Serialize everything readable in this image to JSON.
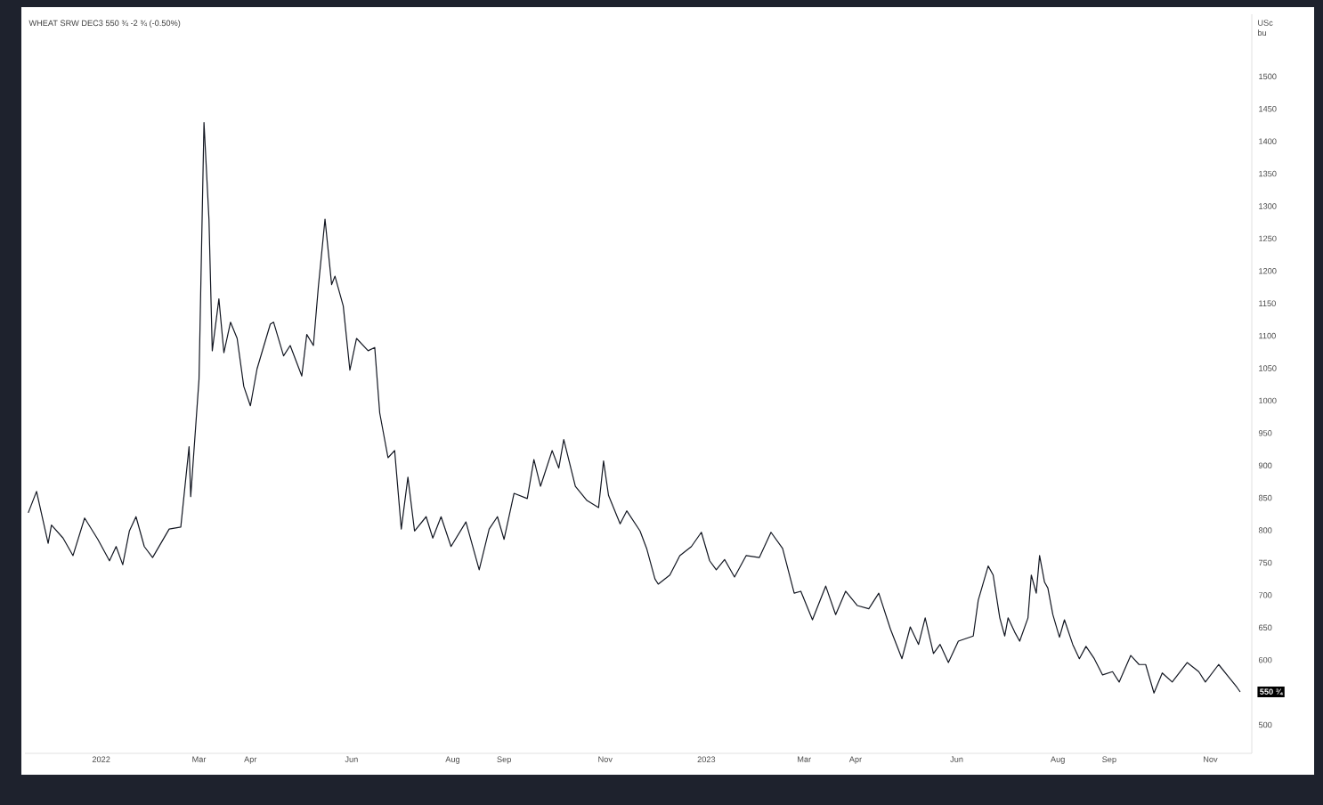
{
  "chart_data": {
    "type": "line",
    "title": "WHEAT SRW DEC3 550 ¾ -2 ¾ (-0.50%)",
    "ylabel": "USc bu",
    "xlim": [
      "2021-11-16",
      "2023-11-26"
    ],
    "xticks": [
      {
        "value": "2022-01-01",
        "label": "2022"
      },
      {
        "value": "2022-03-01",
        "label": "Mar"
      },
      {
        "value": "2022-04-01",
        "label": "Apr"
      },
      {
        "value": "2022-06-01",
        "label": "Jun"
      },
      {
        "value": "2022-08-01",
        "label": "Aug"
      },
      {
        "value": "2022-09-01",
        "label": "Sep"
      },
      {
        "value": "2022-11-01",
        "label": "Nov"
      },
      {
        "value": "2023-01-01",
        "label": "2023"
      },
      {
        "value": "2023-03-01",
        "label": "Mar"
      },
      {
        "value": "2023-04-01",
        "label": "Apr"
      },
      {
        "value": "2023-06-01",
        "label": "Jun"
      },
      {
        "value": "2023-08-01",
        "label": "Aug"
      },
      {
        "value": "2023-09-01",
        "label": "Sep"
      },
      {
        "value": "2023-11-01",
        "label": "Nov"
      }
    ],
    "ylim": [
      456,
      1596
    ],
    "yticks": [
      500,
      600,
      650,
      700,
      750,
      800,
      850,
      900,
      950,
      1000,
      1050,
      1100,
      1150,
      1200,
      1250,
      1300,
      1350,
      1400,
      1450,
      1500
    ],
    "annotations": [
      {
        "text": "550 ¾",
        "x": "2023-11-19",
        "y": 550.75
      }
    ],
    "series": [
      {
        "color": "#131722",
        "x": [
          "2021-11-18",
          "2021-11-23",
          "2021-11-30",
          "2021-12-02",
          "2021-12-09",
          "2021-12-15",
          "2021-12-22",
          "2021-12-30",
          "2022-01-06",
          "2022-01-10",
          "2022-01-14",
          "2022-01-18",
          "2022-01-22",
          "2022-01-27",
          "2022-02-01",
          "2022-02-11",
          "2022-02-18",
          "2022-02-23",
          "2022-02-24",
          "2022-03-01",
          "2022-03-04",
          "2022-03-07",
          "2022-03-09",
          "2022-03-13",
          "2022-03-16",
          "2022-03-20",
          "2022-03-24",
          "2022-03-28",
          "2022-04-01",
          "2022-04-05",
          "2022-04-13",
          "2022-04-15",
          "2022-04-21",
          "2022-04-25",
          "2022-05-02",
          "2022-05-05",
          "2022-05-09",
          "2022-05-12",
          "2022-05-16",
          "2022-05-20",
          "2022-05-22",
          "2022-05-27",
          "2022-05-31",
          "2022-06-04",
          "2022-06-11",
          "2022-06-15",
          "2022-06-18",
          "2022-06-23",
          "2022-06-27",
          "2022-07-01",
          "2022-07-05",
          "2022-07-09",
          "2022-07-16",
          "2022-07-20",
          "2022-07-25",
          "2022-07-31",
          "2022-08-09",
          "2022-08-17",
          "2022-08-23",
          "2022-08-28",
          "2022-09-01",
          "2022-09-07",
          "2022-09-15",
          "2022-09-19",
          "2022-09-23",
          "2022-09-30",
          "2022-10-04",
          "2022-10-07",
          "2022-10-14",
          "2022-10-21",
          "2022-10-28",
          "2022-10-31",
          "2022-11-03",
          "2022-11-10",
          "2022-11-14",
          "2022-11-22",
          "2022-11-26",
          "2022-12-01",
          "2022-12-03",
          "2022-12-10",
          "2022-12-16",
          "2022-12-23",
          "2022-12-29",
          "2023-01-03",
          "2023-01-07",
          "2023-01-12",
          "2023-01-18",
          "2023-01-25",
          "2023-02-02",
          "2023-02-09",
          "2023-02-16",
          "2023-02-23",
          "2023-02-27",
          "2023-03-06",
          "2023-03-14",
          "2023-03-20",
          "2023-03-26",
          "2023-04-02",
          "2023-04-09",
          "2023-04-15",
          "2023-04-22",
          "2023-04-29",
          "2023-05-04",
          "2023-05-09",
          "2023-05-13",
          "2023-05-18",
          "2023-05-22",
          "2023-05-27",
          "2023-06-02",
          "2023-06-11",
          "2023-06-14",
          "2023-06-20",
          "2023-06-23",
          "2023-06-27",
          "2023-06-30",
          "2023-07-02",
          "2023-07-06",
          "2023-07-09",
          "2023-07-14",
          "2023-07-16",
          "2023-07-19",
          "2023-07-21",
          "2023-07-24",
          "2023-07-26",
          "2023-07-29",
          "2023-08-02",
          "2023-08-05",
          "2023-08-10",
          "2023-08-14",
          "2023-08-18",
          "2023-08-23",
          "2023-08-28",
          "2023-09-03",
          "2023-09-07",
          "2023-09-14",
          "2023-09-19",
          "2023-09-23",
          "2023-09-28",
          "2023-10-03",
          "2023-10-09",
          "2023-10-18",
          "2023-10-25",
          "2023-10-29",
          "2023-11-06",
          "2023-11-12",
          "2023-11-17",
          "2023-11-19"
        ],
        "values": [
          827,
          860,
          780,
          808,
          788,
          761,
          819,
          786,
          753,
          775,
          747,
          799,
          821,
          775,
          758,
          802,
          805,
          929,
          852,
          1033,
          1429,
          1280,
          1077,
          1157,
          1074,
          1121,
          1096,
          1022,
          992,
          1049,
          1118,
          1121,
          1069,
          1085,
          1038,
          1102,
          1085,
          1176,
          1280,
          1179,
          1192,
          1146,
          1047,
          1096,
          1077,
          1082,
          981,
          912,
          923,
          802,
          882,
          799,
          821,
          788,
          821,
          775,
          813,
          739,
          802,
          821,
          786,
          857,
          849,
          909,
          868,
          923,
          896,
          940,
          868,
          846,
          835,
          907,
          854,
          810,
          830,
          799,
          772,
          725,
          717,
          731,
          761,
          775,
          797,
          753,
          739,
          755,
          728,
          761,
          758,
          797,
          772,
          703,
          706,
          662,
          714,
          670,
          706,
          684,
          679,
          703,
          648,
          602,
          651,
          624,
          665,
          610,
          624,
          596,
          629,
          637,
          692,
          745,
          731,
          665,
          637,
          665,
          643,
          629,
          665,
          731,
          703,
          761,
          720,
          711,
          670,
          635,
          662,
          624,
          602,
          621,
          602,
          577,
          582,
          566,
          607,
          593,
          593,
          549,
          580,
          566,
          596,
          582,
          566,
          593,
          574,
          558,
          550.75
        ]
      }
    ]
  }
}
